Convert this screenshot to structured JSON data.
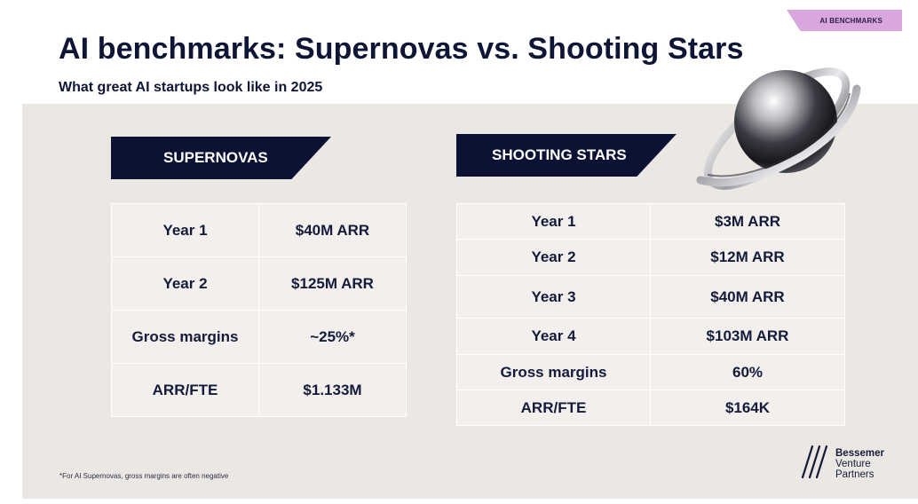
{
  "tag": "AI BENCHMARKS",
  "title": "AI benchmarks: Supernovas vs. Shooting Stars",
  "subtitle": "What great AI startups look like in 2025",
  "supernovas": {
    "label": "SUPERNOVAS",
    "rows": [
      {
        "metric": "Year 1",
        "value": "$40M ARR"
      },
      {
        "metric": "Year 2",
        "value": "$125M ARR"
      },
      {
        "metric": "Gross margins",
        "value": "~25%*"
      },
      {
        "metric": "ARR/FTE",
        "value": "$1.133M"
      }
    ]
  },
  "shooting_stars": {
    "label": "SHOOTING STARS",
    "rows": [
      {
        "metric": "Year 1",
        "value": "$3M ARR"
      },
      {
        "metric": "Year 2",
        "value": "$12M ARR"
      },
      {
        "metric": "Year 3",
        "value": "$40M ARR"
      },
      {
        "metric": "Year 4",
        "value": "$103M ARR"
      },
      {
        "metric": "Gross margins",
        "value": "60%"
      },
      {
        "metric": "ARR/FTE",
        "value": "$164K"
      }
    ]
  },
  "footnote": "*For AI Supernovas, gross margins are often negative",
  "logo": {
    "line1": "Bessemer",
    "line2": "Venture",
    "line3": "Partners",
    "icon": "bessemer-mark-icon"
  },
  "decoration": {
    "icon": "ringed-planet-icon"
  },
  "colors": {
    "navy": "#0c1234",
    "panel": "#ebe7e3",
    "tag": "#d9a7dd"
  }
}
